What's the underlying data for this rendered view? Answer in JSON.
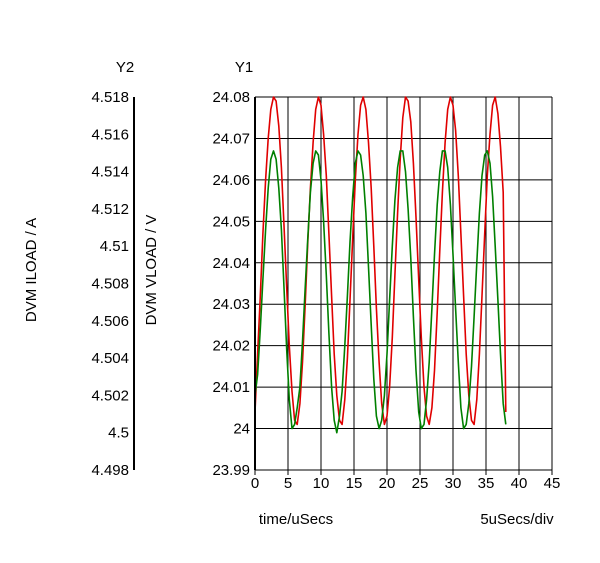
{
  "chart_data": {
    "type": "line",
    "y1_title": "Y1",
    "y2_title": "Y2",
    "y1_label": "DVM VLOAD / V",
    "y2_label": "DVM ILOAD / A",
    "xlabel": "time/uSecs",
    "x_scale_note": "5uSecs/div",
    "xlim": [
      0,
      45
    ],
    "y1lim": [
      23.99,
      24.08
    ],
    "y2lim": [
      4.498,
      4.518
    ],
    "x_ticks": [
      "0",
      "5",
      "10",
      "15",
      "20",
      "25",
      "30",
      "35",
      "40",
      "45"
    ],
    "y1_ticks": [
      "24.08",
      "24.07",
      "24.06",
      "24.05",
      "24.04",
      "24.03",
      "24.02",
      "24.01",
      "24",
      "23.99"
    ],
    "y2_ticks": [
      "4.518",
      "4.516",
      "4.514",
      "4.512",
      "4.51",
      "4.508",
      "4.506",
      "4.504",
      "4.502",
      "4.5",
      "4.498"
    ],
    "grid": true,
    "series": [
      {
        "color": "#e00000",
        "axis": "y1",
        "x": [
          0,
          0.4,
          0.8,
          1.2,
          1.6,
          2.0,
          2.4,
          2.8,
          3.2,
          3.6,
          4.0,
          4.4,
          4.8,
          5.2,
          5.6,
          6.0,
          6.4,
          6.8,
          7.2,
          7.6,
          8.0,
          8.4,
          8.8,
          9.2,
          9.6,
          10.0,
          10.4,
          10.8,
          11.2,
          11.6,
          12.0,
          12.4,
          12.8,
          13.2,
          13.6,
          14.0,
          14.4,
          14.8,
          15.2,
          15.6,
          16.0,
          16.4,
          16.8,
          17.2,
          17.6,
          18.0,
          18.4,
          18.8,
          19.2,
          19.6,
          20.0,
          20.4,
          20.8,
          21.2,
          21.6,
          22.0,
          22.4,
          22.8,
          23.2,
          23.6,
          24.0,
          24.4,
          24.8,
          25.2,
          25.6,
          26.0,
          26.4,
          26.8,
          27.2,
          27.6,
          28.0,
          28.4,
          28.8,
          29.2,
          29.6,
          30.0,
          30.4,
          30.8,
          31.2,
          31.6,
          32.0,
          32.4,
          32.8,
          33.2,
          33.6,
          34.0,
          34.4,
          34.8,
          35.2,
          35.6,
          36.0,
          36.4,
          36.8,
          37.2,
          37.6,
          38.0
        ],
        "values": [
          24.004,
          24.018,
          24.032,
          24.047,
          24.06,
          24.07,
          24.077,
          24.08,
          24.079,
          24.073,
          24.063,
          24.049,
          24.034,
          24.02,
          24.009,
          24.002,
          24.001,
          24.006,
          24.016,
          24.03,
          24.045,
          24.058,
          24.069,
          24.077,
          24.08,
          24.078,
          24.071,
          24.061,
          24.047,
          24.032,
          24.018,
          24.008,
          24.002,
          24.001,
          24.007,
          24.017,
          24.031,
          24.046,
          24.06,
          24.071,
          24.078,
          24.08,
          24.077,
          24.069,
          24.058,
          24.044,
          24.029,
          24.016,
          24.006,
          24.001,
          24.003,
          24.01,
          24.022,
          24.037,
          24.052,
          24.065,
          24.075,
          24.08,
          24.079,
          24.074,
          24.064,
          24.051,
          24.036,
          24.022,
          24.01,
          24.003,
          24.001,
          24.005,
          24.014,
          24.028,
          24.043,
          24.057,
          24.069,
          24.077,
          24.08,
          24.078,
          24.072,
          24.061,
          24.047,
          24.032,
          24.018,
          24.008,
          24.002,
          24.001,
          24.007,
          24.018,
          24.032,
          24.047,
          24.061,
          24.071,
          24.078,
          24.08,
          24.076,
          24.068,
          24.057,
          24.004
        ]
      },
      {
        "color": "#008000",
        "axis": "y1",
        "x": [
          0,
          0.4,
          0.8,
          1.2,
          1.6,
          2.0,
          2.4,
          2.8,
          3.2,
          3.6,
          4.0,
          4.4,
          4.8,
          5.2,
          5.6,
          6.0,
          6.4,
          6.8,
          7.2,
          7.6,
          8.0,
          8.4,
          8.8,
          9.2,
          9.6,
          10.0,
          10.4,
          10.8,
          11.2,
          11.6,
          12.0,
          12.4,
          12.8,
          13.2,
          13.6,
          14.0,
          14.4,
          14.8,
          15.2,
          15.6,
          16.0,
          16.4,
          16.8,
          17.2,
          17.6,
          18.0,
          18.4,
          18.8,
          19.2,
          19.6,
          20.0,
          20.4,
          20.8,
          21.2,
          21.6,
          22.0,
          22.4,
          22.8,
          23.2,
          23.6,
          24.0,
          24.4,
          24.8,
          25.2,
          25.6,
          26.0,
          26.4,
          26.8,
          27.2,
          27.6,
          28.0,
          28.4,
          28.8,
          29.2,
          29.6,
          30.0,
          30.4,
          30.8,
          31.2,
          31.6,
          32.0,
          32.4,
          32.8,
          33.2,
          33.6,
          34.0,
          34.4,
          34.8,
          35.2,
          35.6,
          36.0,
          36.4,
          36.8,
          37.2,
          37.6,
          38.0
        ],
        "values": [
          24.008,
          24.013,
          24.024,
          24.036,
          24.048,
          24.058,
          24.065,
          24.067,
          24.065,
          24.058,
          24.048,
          24.034,
          24.019,
          24.007,
          24.0,
          24.001,
          24.005,
          24.01,
          24.021,
          24.034,
          24.046,
          24.057,
          24.064,
          24.067,
          24.066,
          24.06,
          24.05,
          24.037,
          24.023,
          24.01,
          24.002,
          23.999,
          24.003,
          24.009,
          24.02,
          24.032,
          24.045,
          24.056,
          24.064,
          24.067,
          24.066,
          24.061,
          24.052,
          24.039,
          24.025,
          24.012,
          24.003,
          24.0,
          24.002,
          24.008,
          24.018,
          24.031,
          24.044,
          24.055,
          24.063,
          24.067,
          24.067,
          24.062,
          24.053,
          24.041,
          24.027,
          24.014,
          24.004,
          24.0,
          24.001,
          24.007,
          24.016,
          24.029,
          24.042,
          24.054,
          24.062,
          24.067,
          24.067,
          24.063,
          24.054,
          24.042,
          24.029,
          24.016,
          24.005,
          24.0,
          24.001,
          24.006,
          24.015,
          24.027,
          24.04,
          24.052,
          24.061,
          24.066,
          24.067,
          24.064,
          24.056,
          24.044,
          24.031,
          24.018,
          24.006,
          24.001
        ]
      }
    ]
  }
}
